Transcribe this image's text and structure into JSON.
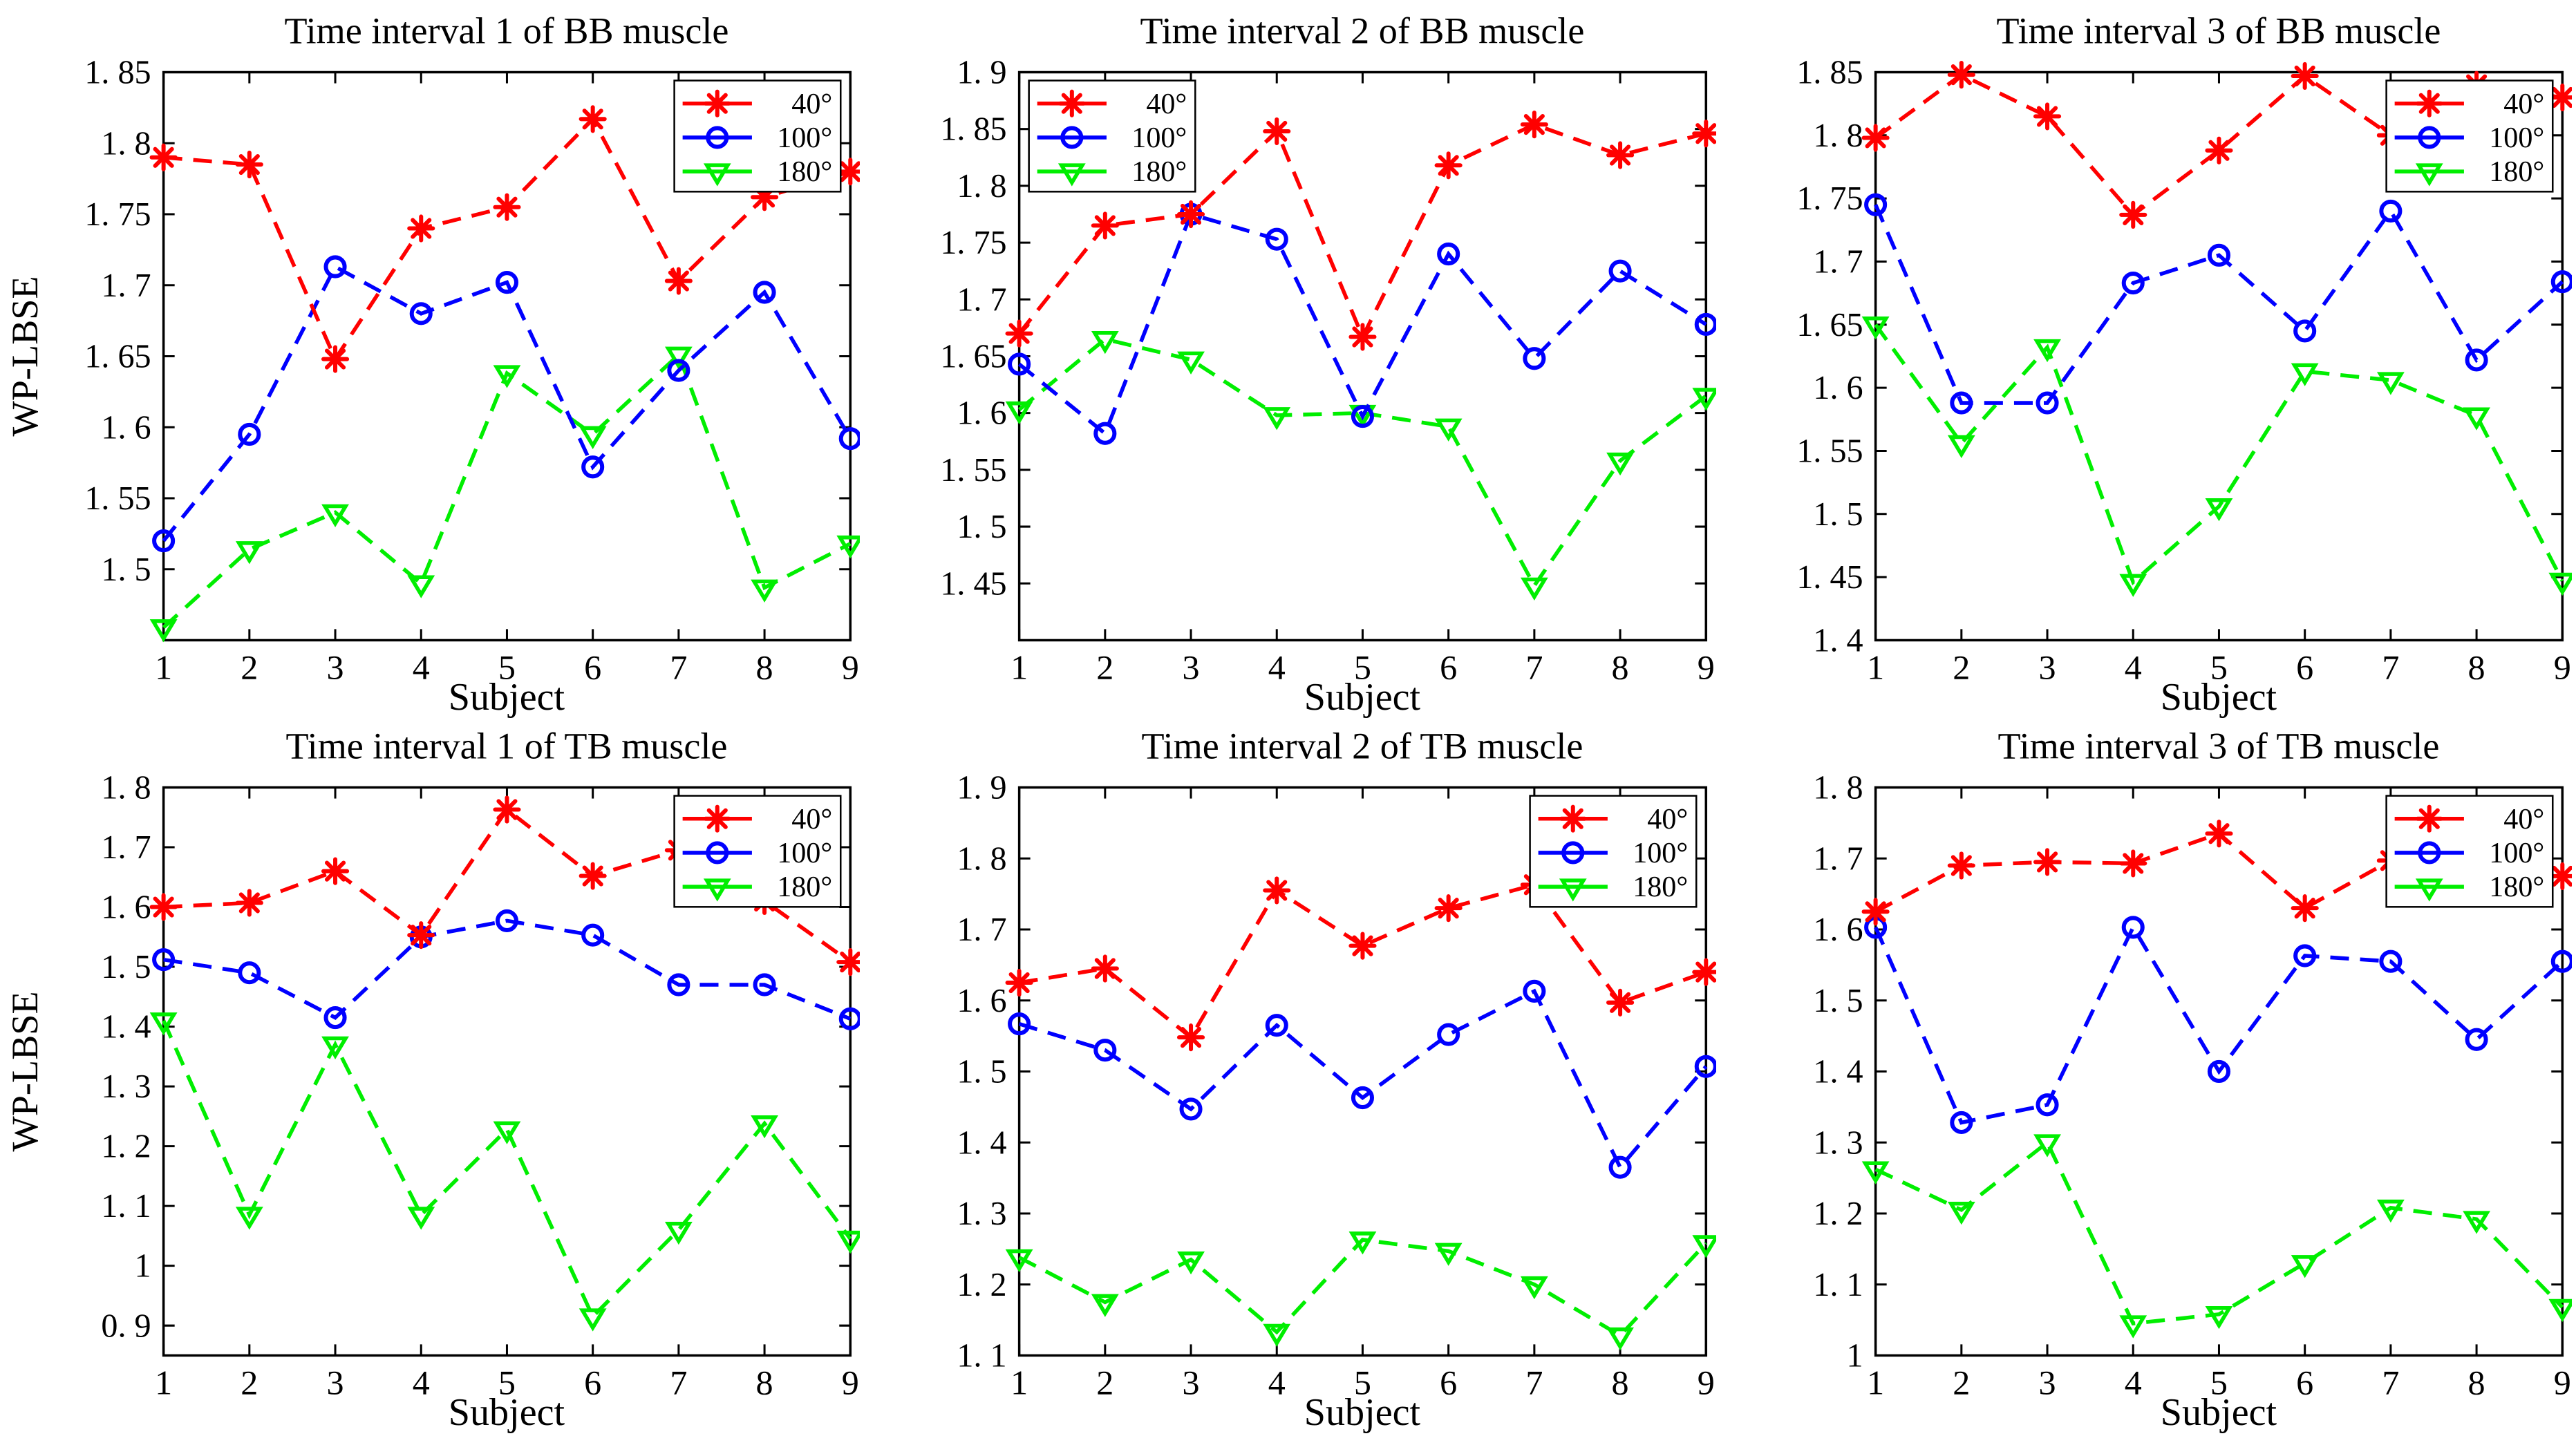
{
  "figure": {
    "rows": 2,
    "cols": 3,
    "background": "#ffffff"
  },
  "colors": {
    "series_40": "#ff0000",
    "series_100": "#0000ff",
    "series_180": "#00ee00",
    "axis": "#000000"
  },
  "chart_data": [
    {
      "type": "line",
      "title": "Time interval 1 of BB muscle",
      "xlabel": "Subject",
      "ylabel": "WP-LBSE",
      "x": [
        1,
        2,
        3,
        4,
        5,
        6,
        7,
        8,
        9
      ],
      "xlim": [
        1,
        9
      ],
      "ylim": [
        1.45,
        1.85
      ],
      "yticks": [
        1.85,
        1.8,
        1.75,
        1.7,
        1.65,
        1.6,
        1.55,
        1.5
      ],
      "grid": false,
      "legend_position": "top-right",
      "series": [
        {
          "name": "40°",
          "key": "40deg",
          "color": "#ff0000",
          "marker": "asterisk",
          "values": [
            1.79,
            1.785,
            1.648,
            1.74,
            1.755,
            1.817,
            1.703,
            1.762,
            1.78
          ]
        },
        {
          "name": "100°",
          "key": "100deg",
          "color": "#0000ff",
          "marker": "circle",
          "values": [
            1.52,
            1.595,
            1.713,
            1.68,
            1.702,
            1.572,
            1.64,
            1.695,
            1.592
          ]
        },
        {
          "name": "180°",
          "key": "180deg",
          "color": "#00ee00",
          "marker": "triangle-down",
          "values": [
            1.459,
            1.514,
            1.54,
            1.49,
            1.638,
            1.595,
            1.651,
            1.487,
            1.518
          ]
        }
      ]
    },
    {
      "type": "line",
      "title": "Time interval 2 of BB muscle",
      "xlabel": "Subject",
      "ylabel": "",
      "x": [
        1,
        2,
        3,
        4,
        5,
        6,
        7,
        8,
        9
      ],
      "xlim": [
        1,
        9
      ],
      "ylim": [
        1.4,
        1.9
      ],
      "yticks": [
        1.9,
        1.85,
        1.8,
        1.75,
        1.7,
        1.65,
        1.6,
        1.55,
        1.5,
        1.45
      ],
      "grid": false,
      "legend_position": "top-left",
      "series": [
        {
          "name": "40°",
          "key": "40deg",
          "color": "#ff0000",
          "marker": "asterisk",
          "values": [
            1.67,
            1.765,
            1.775,
            1.848,
            1.667,
            1.818,
            1.854,
            1.827,
            1.846
          ]
        },
        {
          "name": "100°",
          "key": "100deg",
          "color": "#0000ff",
          "marker": "circle",
          "values": [
            1.643,
            1.582,
            1.775,
            1.753,
            1.597,
            1.74,
            1.648,
            1.725,
            1.678
          ]
        },
        {
          "name": "180°",
          "key": "180deg",
          "color": "#00ee00",
          "marker": "triangle-down",
          "values": [
            1.603,
            1.665,
            1.647,
            1.598,
            1.6,
            1.588,
            1.448,
            1.558,
            1.615
          ]
        }
      ]
    },
    {
      "type": "line",
      "title": "Time interval 3 of BB muscle",
      "xlabel": "Subject",
      "ylabel": "",
      "x": [
        1,
        2,
        3,
        4,
        5,
        6,
        7,
        8,
        9
      ],
      "xlim": [
        1,
        9
      ],
      "ylim": [
        1.4,
        1.85
      ],
      "yticks": [
        1.85,
        1.8,
        1.75,
        1.7,
        1.65,
        1.6,
        1.55,
        1.5,
        1.45,
        1.4
      ],
      "grid": false,
      "legend_position": "top-right",
      "series": [
        {
          "name": "40°",
          "key": "40deg",
          "color": "#ff0000",
          "marker": "asterisk",
          "values": [
            1.798,
            1.848,
            1.815,
            1.737,
            1.788,
            1.847,
            1.8,
            1.84,
            1.83
          ]
        },
        {
          "name": "100°",
          "key": "100deg",
          "color": "#0000ff",
          "marker": "circle",
          "values": [
            1.745,
            1.588,
            1.588,
            1.683,
            1.705,
            1.645,
            1.74,
            1.622,
            1.684
          ]
        },
        {
          "name": "180°",
          "key": "180deg",
          "color": "#00ee00",
          "marker": "triangle-down",
          "values": [
            1.65,
            1.556,
            1.632,
            1.446,
            1.506,
            1.613,
            1.606,
            1.578,
            1.447
          ]
        }
      ]
    },
    {
      "type": "line",
      "title": "Time interval 1 of TB muscle",
      "xlabel": "Subject",
      "ylabel": "WP-LBSE",
      "x": [
        1,
        2,
        3,
        4,
        5,
        6,
        7,
        8,
        9
      ],
      "xlim": [
        1,
        9
      ],
      "ylim": [
        0.85,
        1.8
      ],
      "yticks": [
        1.8,
        1.7,
        1.6,
        1.5,
        1.4,
        1.3,
        1.2,
        1.1,
        1,
        0.9
      ],
      "grid": false,
      "legend_position": "top-right",
      "series": [
        {
          "name": "40°",
          "key": "40deg",
          "color": "#ff0000",
          "marker": "asterisk",
          "values": [
            1.6,
            1.607,
            1.66,
            1.553,
            1.763,
            1.652,
            1.695,
            1.61,
            1.508
          ]
        },
        {
          "name": "100°",
          "key": "100deg",
          "color": "#0000ff",
          "marker": "circle",
          "values": [
            1.512,
            1.49,
            1.415,
            1.55,
            1.577,
            1.553,
            1.47,
            1.47,
            1.413
          ]
        },
        {
          "name": "180°",
          "key": "180deg",
          "color": "#00ee00",
          "marker": "triangle-down",
          "values": [
            1.41,
            1.085,
            1.37,
            1.085,
            1.228,
            0.915,
            1.06,
            1.238,
            1.045
          ]
        }
      ]
    },
    {
      "type": "line",
      "title": "Time interval 2 of TB muscle",
      "xlabel": "Subject",
      "ylabel": "",
      "x": [
        1,
        2,
        3,
        4,
        5,
        6,
        7,
        8,
        9
      ],
      "xlim": [
        1,
        9
      ],
      "ylim": [
        1.1,
        1.9
      ],
      "yticks": [
        1.9,
        1.8,
        1.7,
        1.6,
        1.5,
        1.4,
        1.3,
        1.2,
        1.1
      ],
      "grid": false,
      "legend_position": "top-right",
      "series": [
        {
          "name": "40°",
          "key": "40deg",
          "color": "#ff0000",
          "marker": "asterisk",
          "values": [
            1.625,
            1.645,
            1.548,
            1.755,
            1.677,
            1.73,
            1.763,
            1.597,
            1.64
          ]
        },
        {
          "name": "100°",
          "key": "100deg",
          "color": "#0000ff",
          "marker": "circle",
          "values": [
            1.567,
            1.53,
            1.447,
            1.565,
            1.463,
            1.552,
            1.613,
            1.365,
            1.507
          ]
        },
        {
          "name": "180°",
          "key": "180deg",
          "color": "#00ee00",
          "marker": "triangle-down",
          "values": [
            1.238,
            1.175,
            1.235,
            1.133,
            1.263,
            1.247,
            1.2,
            1.128,
            1.258
          ]
        }
      ]
    },
    {
      "type": "line",
      "title": "Time interval 3 of TB muscle",
      "xlabel": "Subject",
      "ylabel": "",
      "x": [
        1,
        2,
        3,
        4,
        5,
        6,
        7,
        8,
        9
      ],
      "xlim": [
        1,
        9
      ],
      "ylim": [
        1,
        1.8
      ],
      "yticks": [
        1.8,
        1.7,
        1.6,
        1.5,
        1.4,
        1.3,
        1.2,
        1.1,
        1
      ],
      "grid": false,
      "legend_position": "top-right",
      "series": [
        {
          "name": "40°",
          "key": "40deg",
          "color": "#ff0000",
          "marker": "asterisk",
          "values": [
            1.625,
            1.69,
            1.695,
            1.693,
            1.735,
            1.63,
            1.697,
            1.71,
            1.675
          ]
        },
        {
          "name": "100°",
          "key": "100deg",
          "color": "#0000ff",
          "marker": "circle",
          "values": [
            1.603,
            1.328,
            1.353,
            1.603,
            1.4,
            1.563,
            1.555,
            1.445,
            1.555
          ]
        },
        {
          "name": "180°",
          "key": "180deg",
          "color": "#00ee00",
          "marker": "triangle-down",
          "values": [
            1.262,
            1.205,
            1.3,
            1.045,
            1.058,
            1.13,
            1.208,
            1.192,
            1.068
          ]
        }
      ]
    }
  ]
}
